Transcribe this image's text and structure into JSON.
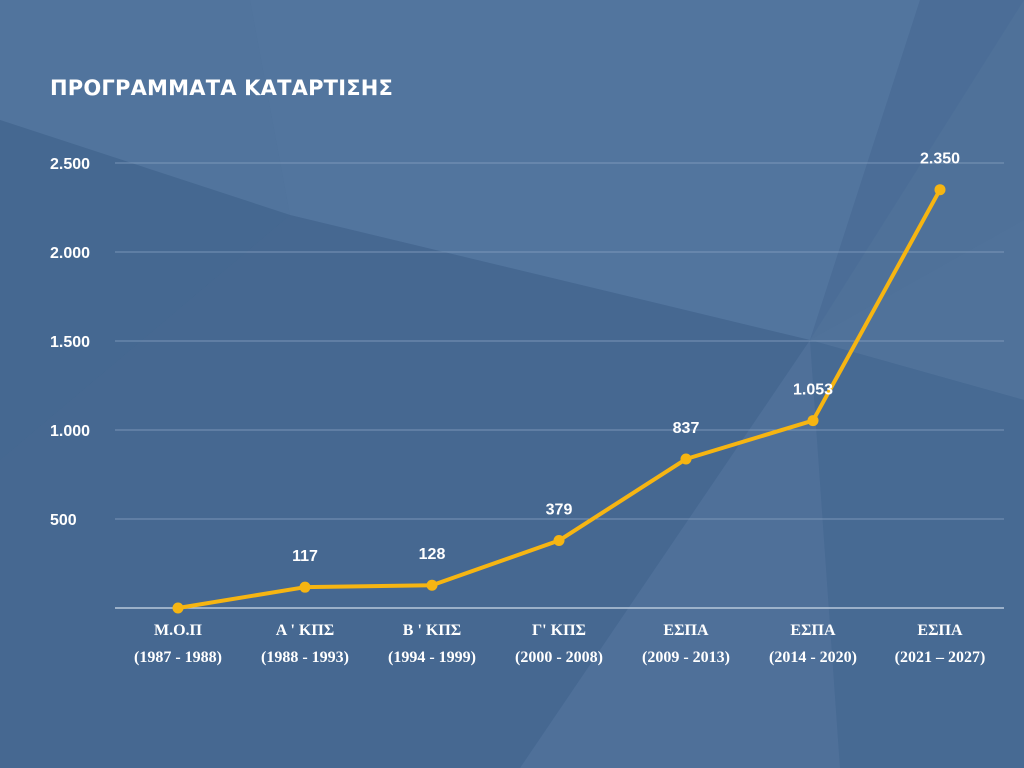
{
  "colors": {
    "background": "#4a6c96",
    "line": "#f6b512",
    "gridline": "#8aa3c3",
    "text": "#ffffff"
  },
  "chart_data": {
    "type": "line",
    "title": "ΠΡΟΓΡΑΜΜΑΤΑ ΚΑΤΑΡΤΙΣΗΣ",
    "xlabel": "",
    "ylabel": "",
    "categories": [
      [
        "Μ.Ο.Π",
        "(1987 - 1988)"
      ],
      [
        "Α ' ΚΠΣ",
        "(1988 - 1993)"
      ],
      [
        "Β ' ΚΠΣ",
        "(1994 - 1999)"
      ],
      [
        "Γ' ΚΠΣ",
        "(2000 - 2008)"
      ],
      [
        "ΕΣΠΑ",
        "(2009 - 2013)"
      ],
      [
        "ΕΣΠΑ",
        "(2014 - 2020)"
      ],
      [
        "ΕΣΠΑ",
        "(2021 – 2027)"
      ]
    ],
    "series": [
      {
        "values": [
          0,
          117,
          128,
          379,
          837,
          1053,
          2350
        ]
      }
    ],
    "data_labels": [
      "",
      "117",
      "128",
      "379",
      "837",
      "1.053",
      "2.350"
    ],
    "yticks": [
      500,
      1000,
      1500,
      2000,
      2500
    ],
    "ytick_labels": [
      "500",
      "1.000",
      "1.500",
      "2.000",
      "2.500"
    ],
    "ylim": [
      0,
      2500
    ],
    "grid": true,
    "legend": "none"
  }
}
